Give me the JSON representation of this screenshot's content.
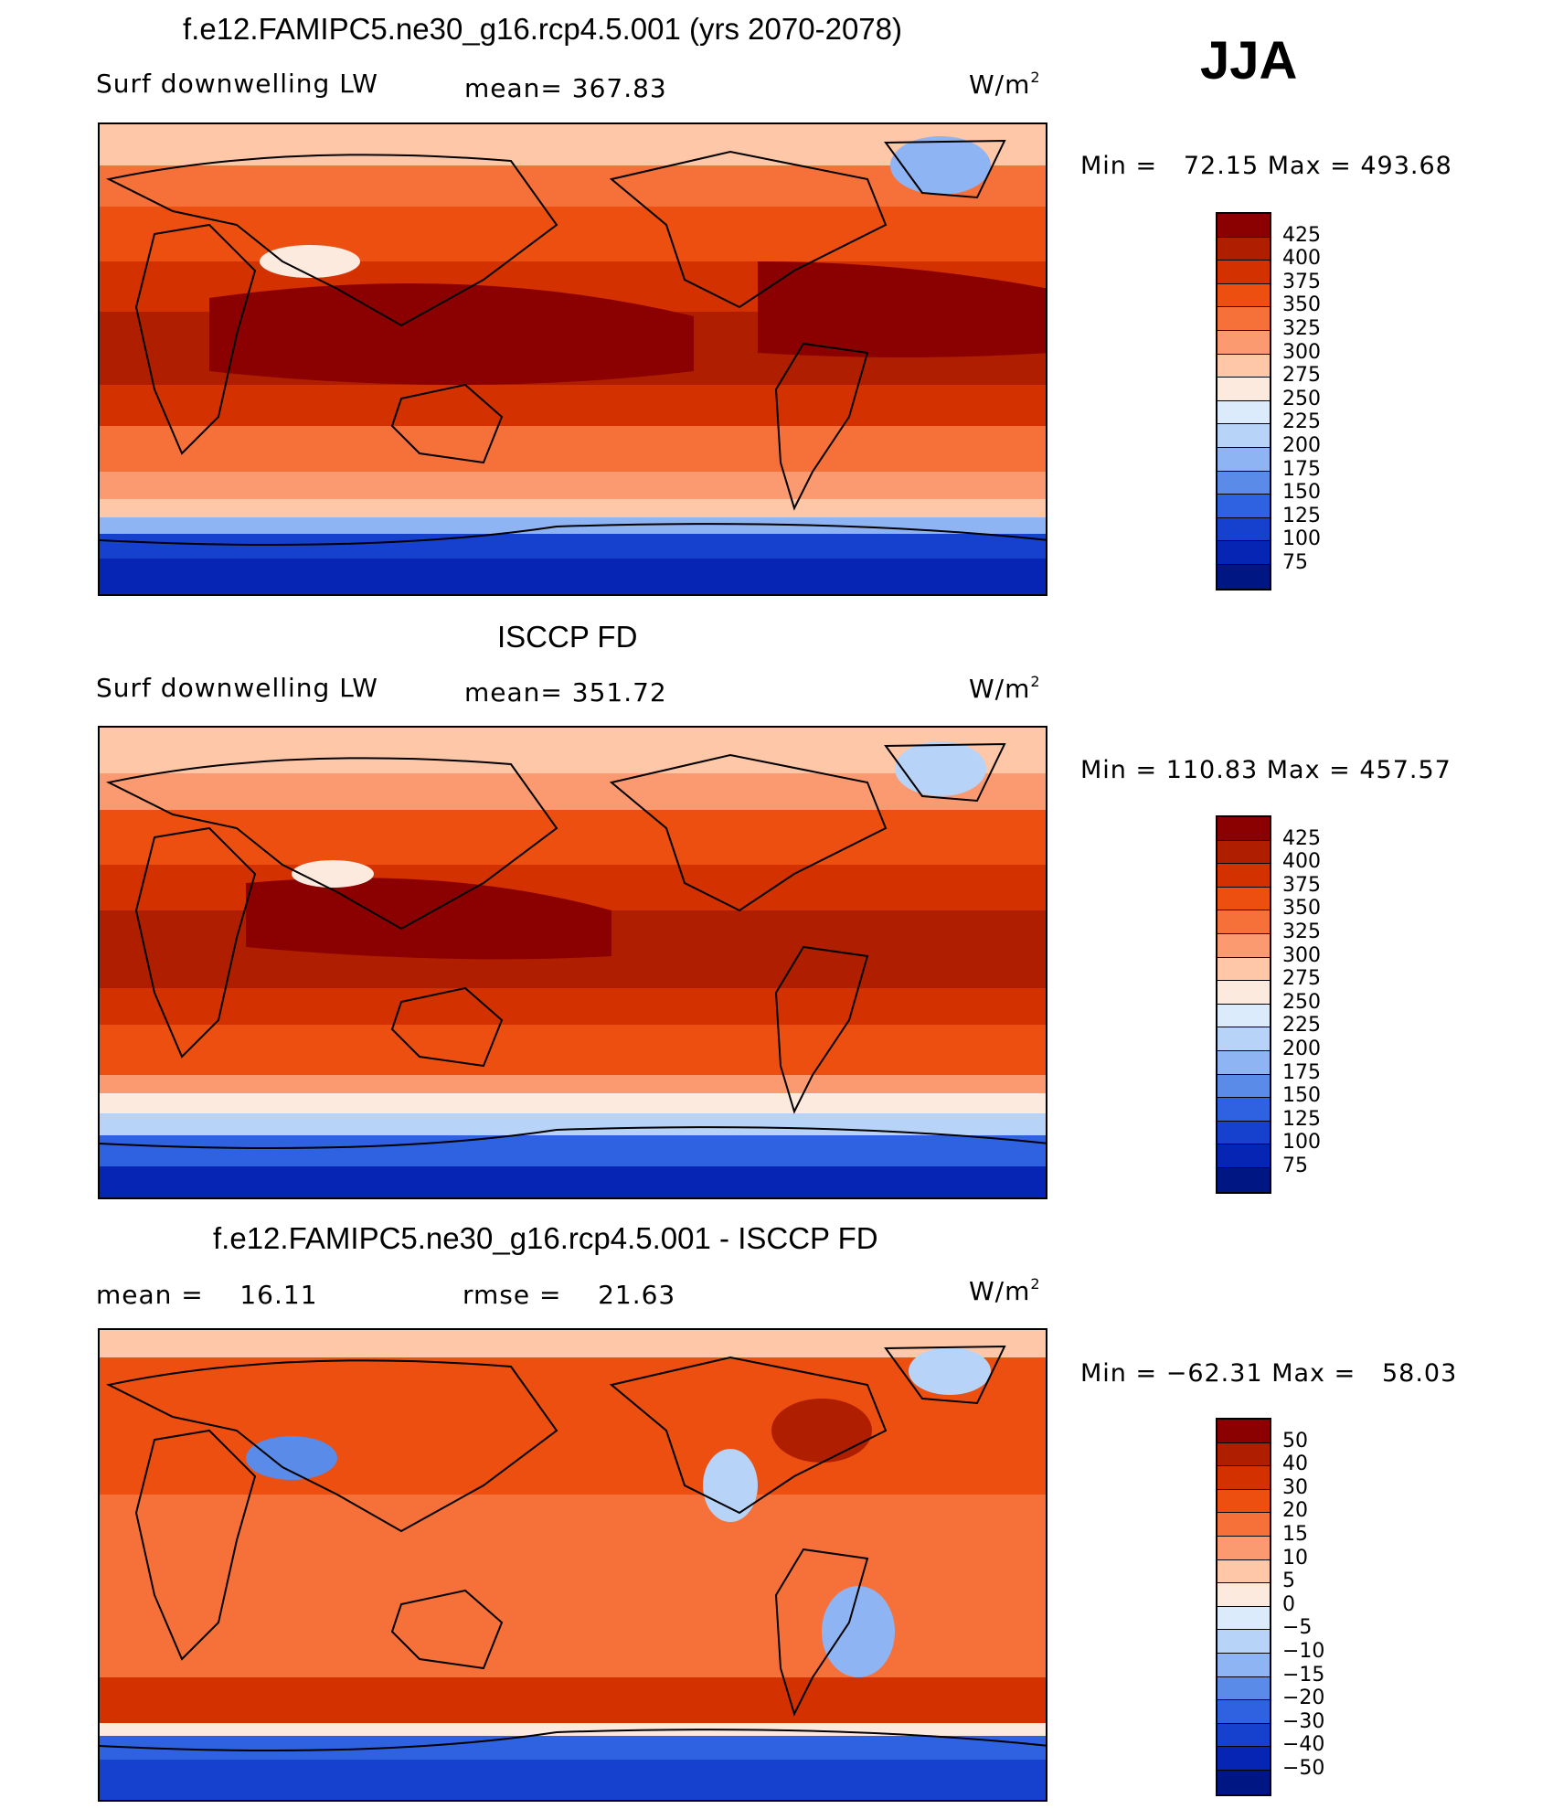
{
  "season": "JJA",
  "panels": [
    {
      "title": "f.e12.FAMIPC5.ne30_g16.rcp4.5.001 (yrs 2070-2078)",
      "left_label": "Surf downwelling LW",
      "center_label": "mean= 367.83",
      "units_base": "W/m",
      "units_exp": "2",
      "minmax": "Min =   72.15 Max = 493.68",
      "cbar_labels": [
        "425",
        "400",
        "375",
        "350",
        "325",
        "300",
        "275",
        "250",
        "225",
        "200",
        "175",
        "150",
        "125",
        "100",
        "75"
      ],
      "cbar_colors": [
        "#8b0000",
        "#b01e00",
        "#d43100",
        "#ec4f10",
        "#f6703a",
        "#fb9a70",
        "#fdc7a8",
        "#fdeade",
        "#dcebfb",
        "#b7d4f8",
        "#8fb4f3",
        "#5a8be9",
        "#2e62e1",
        "#1641cf",
        "#0625b4",
        "#001682"
      ]
    },
    {
      "title": "ISCCP FD",
      "left_label": "Surf downwelling LW",
      "center_label": "mean= 351.72",
      "units_base": "W/m",
      "units_exp": "2",
      "minmax": "Min = 110.83 Max = 457.57",
      "cbar_labels": [
        "425",
        "400",
        "375",
        "350",
        "325",
        "300",
        "275",
        "250",
        "225",
        "200",
        "175",
        "150",
        "125",
        "100",
        "75"
      ],
      "cbar_colors": [
        "#8b0000",
        "#b01e00",
        "#d43100",
        "#ec4f10",
        "#f6703a",
        "#fb9a70",
        "#fdc7a8",
        "#fdeade",
        "#dcebfb",
        "#b7d4f8",
        "#8fb4f3",
        "#5a8be9",
        "#2e62e1",
        "#1641cf",
        "#0625b4",
        "#001682"
      ]
    },
    {
      "title": "f.e12.FAMIPC5.ne30_g16.rcp4.5.001 - ISCCP FD",
      "left_label": "mean =    16.11",
      "center_label": "rmse =    21.63",
      "units_base": "W/m",
      "units_exp": "2",
      "minmax": "Min = −62.31 Max =   58.03",
      "cbar_labels": [
        "50",
        "40",
        "30",
        "20",
        "15",
        "10",
        "5",
        "0",
        "−5",
        "−10",
        "−15",
        "−20",
        "−30",
        "−40",
        "−50"
      ],
      "cbar_colors": [
        "#8b0000",
        "#b01e00",
        "#d43100",
        "#ec4f10",
        "#f6703a",
        "#fb9a70",
        "#fdc7a8",
        "#fdeade",
        "#dcebfb",
        "#b7d4f8",
        "#8fb4f3",
        "#5a8be9",
        "#2e62e1",
        "#1641cf",
        "#0625b4",
        "#001682"
      ]
    }
  ]
}
